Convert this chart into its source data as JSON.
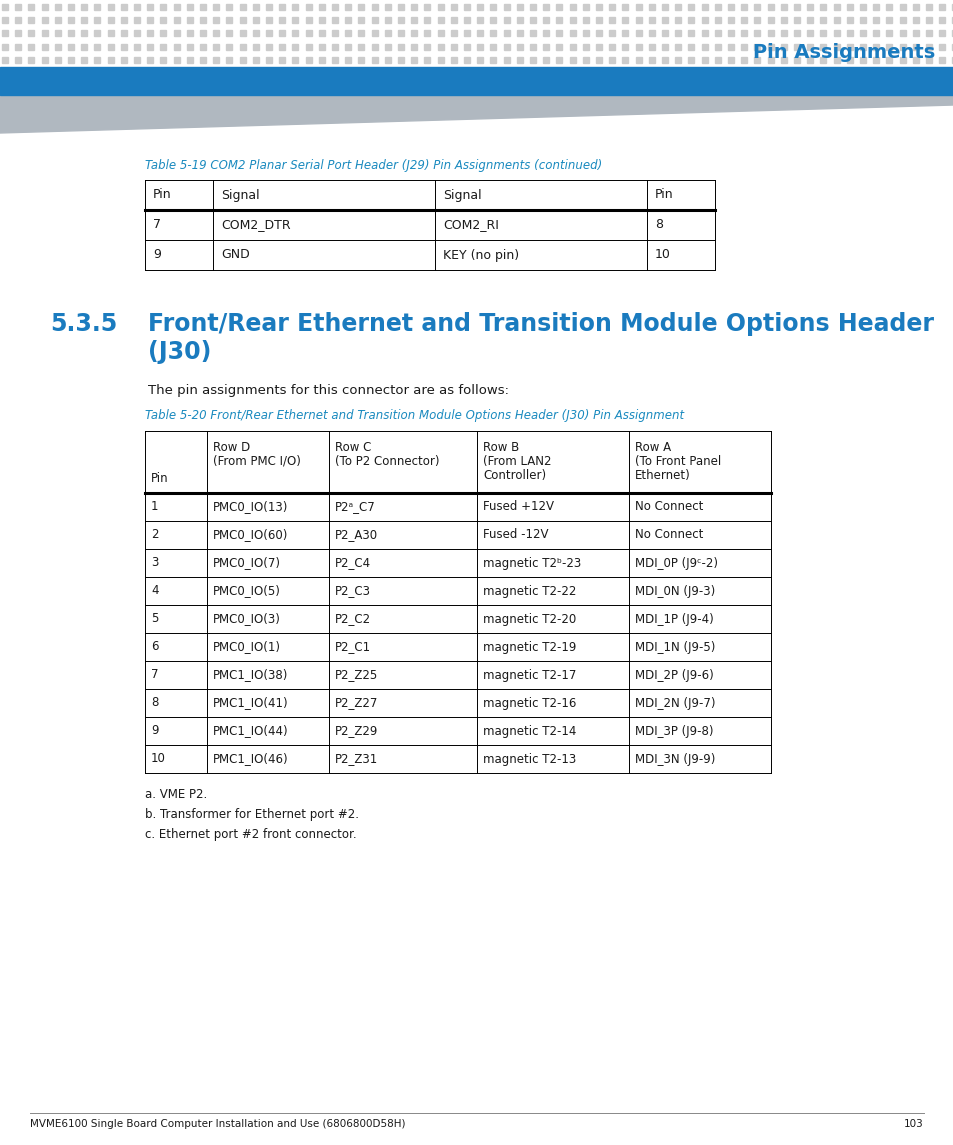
{
  "page_header_title": "Pin Assignments",
  "header_dot_color": "#cccccc",
  "header_bar_color": "#1a7bbf",
  "header_triangle_color": "#b0b8c0",
  "section_number": "5.3.5",
  "section_title_line1": "Front/Rear Ethernet and Transition Module Options Header",
  "section_title_line2": "(J30)",
  "section_color": "#1a7bbf",
  "body_text": "The pin assignments for this connector are as follows:",
  "table19_caption": "Table 5-19 COM2 Planar Serial Port Header (J29) Pin Assignments (continued)",
  "table19_caption_color": "#1a8abf",
  "table19_headers": [
    "Pin",
    "Signal",
    "Signal",
    "Pin"
  ],
  "table19_rows": [
    [
      "7",
      "COM2_DTR",
      "COM2_RI",
      "8"
    ],
    [
      "9",
      "GND",
      "KEY (no pin)",
      "10"
    ]
  ],
  "table20_caption": "Table 5-20 Front/Rear Ethernet and Transition Module Options Header (J30) Pin Assignment",
  "table20_caption_color": "#1a8abf",
  "table20_col_headers": [
    [
      "Pin",
      "",
      "",
      "Row B",
      "Row A"
    ],
    [
      "",
      "Row D",
      "Row C",
      "(From LAN2",
      "(To Front Panel"
    ],
    [
      "",
      "(From PMC I/O)",
      "(To P2 Connector)",
      "Controller)",
      "Ethernet)"
    ]
  ],
  "table20_rows": [
    [
      "1",
      "PMC0_IO(13)",
      "P2ᵃ_C7",
      "Fused +12V",
      "No Connect"
    ],
    [
      "2",
      "PMC0_IO(60)",
      "P2_A30",
      "Fused -12V",
      "No Connect"
    ],
    [
      "3",
      "PMC0_IO(7)",
      "P2_C4",
      "magnetic T2ᵇ-23",
      "MDI_0P (J9ᶜ-2)"
    ],
    [
      "4",
      "PMC0_IO(5)",
      "P2_C3",
      "magnetic T2-22",
      "MDI_0N (J9-3)"
    ],
    [
      "5",
      "PMC0_IO(3)",
      "P2_C2",
      "magnetic T2-20",
      "MDI_1P (J9-4)"
    ],
    [
      "6",
      "PMC0_IO(1)",
      "P2_C1",
      "magnetic T2-19",
      "MDI_1N (J9-5)"
    ],
    [
      "7",
      "PMC1_IO(38)",
      "P2_Z25",
      "magnetic T2-17",
      "MDI_2P (J9-6)"
    ],
    [
      "8",
      "PMC1_IO(41)",
      "P2_Z27",
      "magnetic T2-16",
      "MDI_2N (J9-7)"
    ],
    [
      "9",
      "PMC1_IO(44)",
      "P2_Z29",
      "magnetic T2-14",
      "MDI_3P (J9-8)"
    ],
    [
      "10",
      "PMC1_IO(46)",
      "P2_Z31",
      "magnetic T2-13",
      "MDI_3N (J9-9)"
    ]
  ],
  "footnotes": [
    "a. VME P2.",
    "b. Transformer for Ethernet port #2.",
    "c. Ethernet port #2 front connector."
  ],
  "footer_text": "MVME6100 Single Board Computer Installation and Use (6806800D58H)",
  "footer_page": "103",
  "background_color": "#ffffff",
  "text_color": "#1a1a1a"
}
